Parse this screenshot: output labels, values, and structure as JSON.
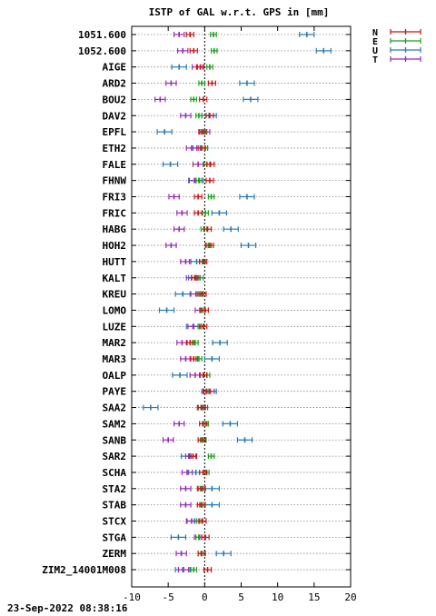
{
  "chart_data": {
    "type": "errorbar",
    "title": "ISTP of GAL w.r.t. GPS in [mm]",
    "xlim": [
      -10,
      20
    ],
    "x_ticks": [
      -10,
      -5,
      0,
      5,
      10,
      15,
      20
    ],
    "grid": "horizontal dotted",
    "legend_position": "top-right",
    "stations": [
      "1051.600",
      "1052.600",
      "AIGE",
      "ARD2",
      "BOU2",
      "DAV2",
      "EPFL",
      "ETH2",
      "FALE",
      "FHNW",
      "FRI3",
      "FRIC",
      "HABG",
      "HOH2",
      "HUTT",
      "KALT",
      "KREU",
      "LOMO",
      "LUZE",
      "MAR2",
      "MAR3",
      "OALP",
      "PAYE",
      "SAA2",
      "SAM2",
      "SANB",
      "SAR2",
      "SCHA",
      "STA2",
      "STAB",
      "STCX",
      "STGA",
      "ZERM",
      "ZIM2_14001M008"
    ],
    "series": [
      {
        "name": "N",
        "color": "#cc1111",
        "err": 0.5,
        "values": [
          -2.0,
          -1.5,
          -0.6,
          1.0,
          -0.2,
          0.7,
          -0.3,
          -0.4,
          0.8,
          0.7,
          -0.9,
          -0.9,
          0.4,
          0.7,
          -0.2,
          -1.3,
          -0.3,
          0.0,
          -0.2,
          -2.0,
          -1.5,
          -0.2,
          0.3,
          -0.4,
          -0.2,
          -0.4,
          -1.6,
          -0.2,
          -0.4,
          -0.5,
          -0.3,
          0.1,
          -0.4,
          0.4
        ]
      },
      {
        "name": "E",
        "color": "#1aa01a",
        "err": 0.4,
        "values": [
          1.2,
          1.3,
          0.7,
          -0.4,
          -1.5,
          -0.8,
          -0.1,
          0.0,
          0.3,
          -0.8,
          0.9,
          0.1,
          -0.1,
          0.5,
          -0.3,
          -1.0,
          -0.6,
          -0.3,
          -0.5,
          -1.3,
          -0.8,
          0.3,
          0.2,
          -0.5,
          0.1,
          -0.2,
          0.9,
          0.2,
          -0.6,
          -0.3,
          -0.7,
          -0.8,
          -0.5,
          -1.5
        ]
      },
      {
        "name": "U",
        "color": "#2a7ab8",
        "err": 1.0,
        "values": [
          14.0,
          16.3,
          -3.5,
          5.8,
          6.3,
          0.6,
          -5.5,
          -0.6,
          -4.7,
          -1.2,
          5.8,
          2.0,
          3.6,
          6.0,
          -1.1,
          -1.2,
          -3.0,
          -5.2,
          -1.5,
          2.1,
          1.0,
          -3.4,
          0.6,
          -7.4,
          3.5,
          5.5,
          -2.2,
          -1.2,
          1.0,
          1.0,
          -1.4,
          -3.6,
          2.6,
          -3.0
        ]
      },
      {
        "name": "T",
        "color": "#9a2ab8",
        "err": 0.7,
        "values": [
          -3.5,
          -3.0,
          -1.0,
          -4.6,
          -6.1,
          -2.6,
          0.0,
          -1.8,
          -0.9,
          -1.4,
          -4.2,
          -3.1,
          -3.5,
          -4.6,
          -2.6,
          -1.8,
          -1.2,
          -0.6,
          -1.6,
          -3.1,
          -2.6,
          -1.3,
          0.6,
          -0.3,
          -3.5,
          -5.0,
          -1.9,
          -2.4,
          -2.6,
          -2.6,
          -1.8,
          -0.7,
          -3.2,
          -2.9
        ]
      }
    ]
  },
  "footer": {
    "timestamp": "23-Sep-2022 08:38:16"
  }
}
